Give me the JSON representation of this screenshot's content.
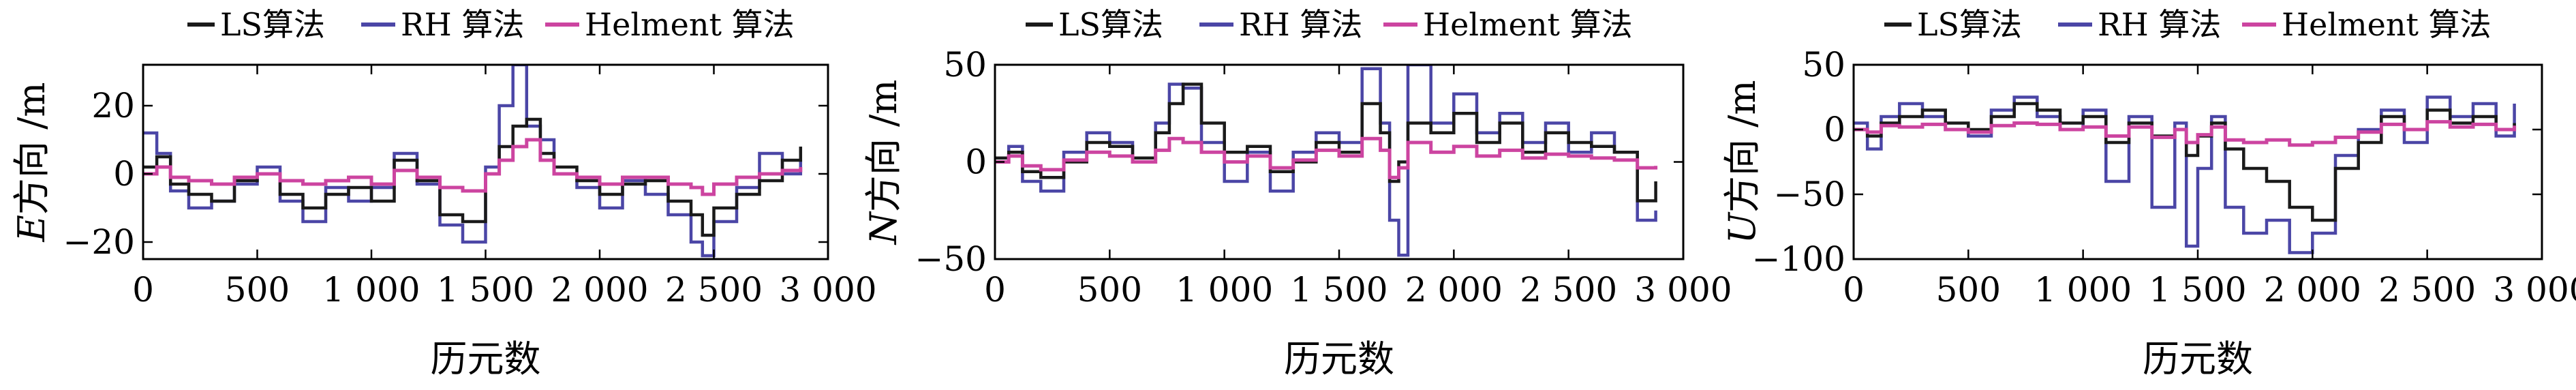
{
  "legend": {
    "ls": "LS算法",
    "rh": "RH 算法",
    "helmert": "Helment 算法"
  },
  "colors": {
    "ls": "#1a1a1a",
    "rh": "#4b46a6",
    "helmert": "#cc44a0"
  },
  "chart_data": [
    {
      "type": "line",
      "panel": "E",
      "xlabel": "历元数",
      "ylabel_var": "E",
      "ylabel_rest": "方向 /m",
      "xlim": [
        0,
        3000
      ],
      "ylim": [
        -25,
        32
      ],
      "xticks": [
        0,
        500,
        1000,
        1500,
        2000,
        2500,
        3000
      ],
      "xtick_labels": [
        "0",
        "500",
        "1 000",
        "1 500",
        "2 000",
        "2 500",
        "3 000"
      ],
      "yticks": [
        -20,
        0,
        20
      ],
      "ytick_labels": [
        "−20",
        "0",
        "20"
      ],
      "x": [
        0,
        60,
        120,
        200,
        300,
        400,
        500,
        600,
        700,
        800,
        900,
        1000,
        1100,
        1200,
        1300,
        1400,
        1500,
        1560,
        1620,
        1680,
        1740,
        1800,
        1900,
        2000,
        2100,
        2200,
        2300,
        2400,
        2450,
        2500,
        2600,
        2700,
        2800,
        2880
      ],
      "series": [
        {
          "name": "LS算法",
          "key": "ls",
          "values": [
            2,
            5,
            -3,
            -6,
            -8,
            -2,
            0,
            -6,
            -10,
            -6,
            -4,
            -8,
            4,
            -2,
            -12,
            -14,
            0,
            8,
            14,
            16,
            6,
            2,
            -2,
            -6,
            -3,
            -2,
            -8,
            -12,
            -18,
            -10,
            -6,
            -2,
            4,
            8
          ]
        },
        {
          "name": "RH 算法",
          "key": "rh",
          "values": [
            12,
            6,
            -5,
            -10,
            -8,
            -3,
            2,
            -8,
            -14,
            -4,
            -8,
            -4,
            6,
            -3,
            -15,
            -20,
            2,
            20,
            32,
            14,
            10,
            0,
            -4,
            -10,
            -2,
            -6,
            -12,
            -20,
            -24,
            -14,
            -4,
            6,
            0,
            4
          ]
        },
        {
          "name": "Helment 算法",
          "key": "helmert",
          "values": [
            0,
            2,
            -1,
            -2,
            -3,
            -1,
            0,
            -2,
            -3,
            -2,
            -1,
            -3,
            1,
            -1,
            -4,
            -5,
            0,
            4,
            8,
            10,
            4,
            0,
            -1,
            -3,
            -1,
            -1,
            -3,
            -4,
            -6,
            -3,
            -1,
            0,
            1,
            2
          ]
        }
      ]
    },
    {
      "type": "line",
      "panel": "N",
      "xlabel": "历元数",
      "ylabel_var": "N",
      "ylabel_rest": "方向 /m",
      "xlim": [
        0,
        3000
      ],
      "ylim": [
        -50,
        50
      ],
      "xticks": [
        0,
        500,
        1000,
        1500,
        2000,
        2500,
        3000
      ],
      "xtick_labels": [
        "0",
        "500",
        "1 000",
        "1 500",
        "2 000",
        "2 500",
        "3 000"
      ],
      "yticks": [
        -50,
        0,
        50
      ],
      "ytick_labels": [
        "−50",
        "0",
        "50"
      ],
      "x": [
        0,
        60,
        120,
        200,
        300,
        400,
        500,
        600,
        700,
        760,
        820,
        900,
        1000,
        1100,
        1200,
        1300,
        1400,
        1500,
        1600,
        1680,
        1720,
        1760,
        1800,
        1900,
        2000,
        2100,
        2200,
        2300,
        2400,
        2500,
        2600,
        2700,
        2800,
        2880
      ],
      "series": [
        {
          "name": "LS算法",
          "key": "ls",
          "values": [
            2,
            5,
            -5,
            -8,
            0,
            10,
            8,
            2,
            15,
            30,
            40,
            20,
            5,
            8,
            -5,
            0,
            10,
            5,
            30,
            15,
            -10,
            0,
            20,
            15,
            25,
            10,
            20,
            5,
            15,
            10,
            8,
            5,
            -20,
            -10
          ]
        },
        {
          "name": "RH 算法",
          "key": "rh",
          "values": [
            0,
            8,
            -10,
            -15,
            5,
            15,
            10,
            0,
            20,
            40,
            38,
            10,
            -10,
            5,
            -15,
            5,
            15,
            10,
            48,
            20,
            -30,
            -48,
            50,
            20,
            35,
            15,
            25,
            10,
            20,
            5,
            15,
            5,
            -30,
            -25
          ]
        },
        {
          "name": "Helment 算法",
          "key": "helmert",
          "values": [
            0,
            3,
            -2,
            -4,
            1,
            5,
            3,
            0,
            6,
            12,
            10,
            5,
            0,
            3,
            -3,
            1,
            6,
            3,
            12,
            6,
            -8,
            -3,
            10,
            5,
            8,
            3,
            6,
            2,
            4,
            3,
            2,
            1,
            -3,
            -2
          ]
        }
      ]
    },
    {
      "type": "line",
      "panel": "U",
      "xlabel": "历元数",
      "ylabel_var": "U",
      "ylabel_rest": "方向 /m",
      "xlim": [
        0,
        3000
      ],
      "ylim": [
        -100,
        50
      ],
      "xticks": [
        0,
        500,
        1000,
        1500,
        2000,
        2500,
        3000
      ],
      "xtick_labels": [
        "0",
        "500",
        "1 000",
        "1 500",
        "2 000",
        "2 500",
        "3 000"
      ],
      "yticks": [
        -100,
        -50,
        0,
        50
      ],
      "ytick_labels": [
        "−100",
        "−50",
        "0",
        "50"
      ],
      "x": [
        0,
        60,
        120,
        200,
        300,
        400,
        500,
        600,
        700,
        800,
        900,
        1000,
        1100,
        1200,
        1300,
        1400,
        1450,
        1500,
        1560,
        1620,
        1700,
        1800,
        1900,
        2000,
        2100,
        2200,
        2300,
        2400,
        2500,
        2600,
        2700,
        2800,
        2880
      ],
      "series": [
        {
          "name": "LS算法",
          "key": "ls",
          "values": [
            0,
            -5,
            5,
            10,
            15,
            5,
            0,
            10,
            20,
            15,
            5,
            10,
            -10,
            5,
            -5,
            0,
            -20,
            -5,
            5,
            -15,
            -30,
            -40,
            -60,
            -70,
            -30,
            -10,
            10,
            0,
            15,
            5,
            10,
            0,
            5
          ]
        },
        {
          "name": "RH 算法",
          "key": "rh",
          "values": [
            5,
            -15,
            10,
            20,
            10,
            0,
            -5,
            15,
            25,
            10,
            0,
            15,
            -40,
            10,
            -60,
            5,
            -90,
            -30,
            10,
            -60,
            -80,
            -70,
            -95,
            -80,
            -20,
            0,
            15,
            -10,
            25,
            10,
            20,
            -5,
            20
          ]
        },
        {
          "name": "Helment 算法",
          "key": "helmert",
          "values": [
            0,
            -2,
            3,
            2,
            4,
            0,
            -2,
            3,
            5,
            4,
            0,
            2,
            -5,
            2,
            -6,
            0,
            -10,
            -4,
            2,
            -8,
            -10,
            -8,
            -12,
            -10,
            -6,
            -2,
            4,
            0,
            6,
            2,
            4,
            0,
            3
          ]
        }
      ]
    }
  ]
}
